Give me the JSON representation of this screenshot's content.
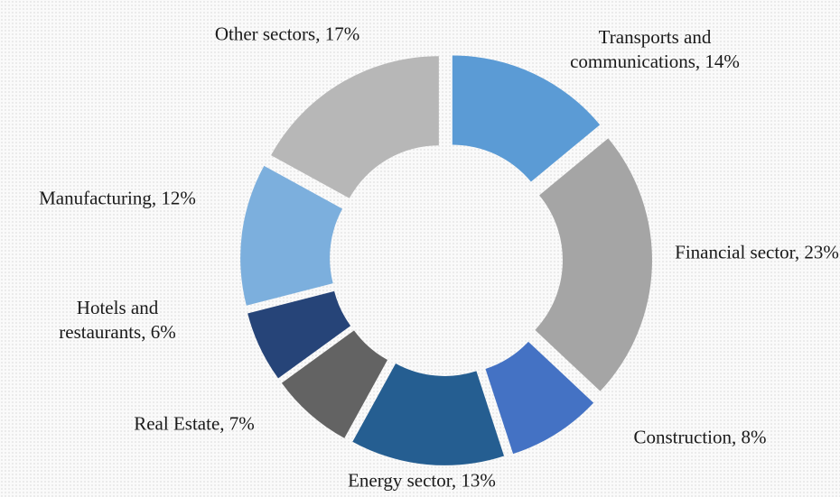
{
  "chart_data": {
    "type": "donut",
    "categories": [
      "Transports and communications, 14%",
      "Financial sector, 23%",
      "Construction, 8%",
      "Energy sector, 13%",
      "Real Estate, 7%",
      "Hotels and restaurants, 6%",
      "Manufacturing, 12%",
      "Other sectors, 17%"
    ],
    "values": [
      14,
      23,
      8,
      13,
      7,
      6,
      12,
      17
    ],
    "colors": [
      "#5b9bd5",
      "#a5a5a5",
      "#4472c4",
      "#255e91",
      "#636363",
      "#264478",
      "#7cafdd",
      "#b7b7b7"
    ]
  }
}
